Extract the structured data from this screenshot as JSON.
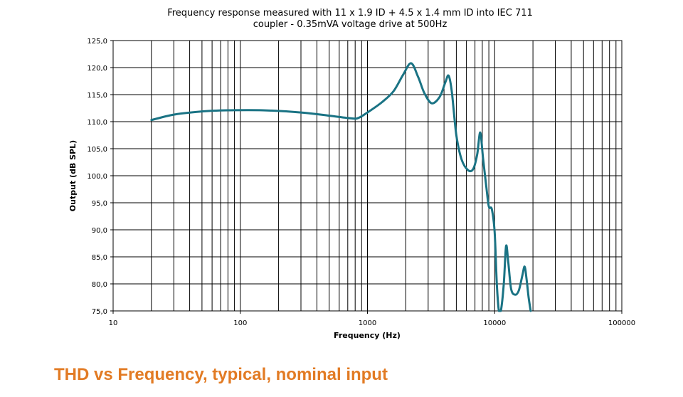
{
  "chart_data": {
    "type": "line",
    "title_lines": [
      "Frequency response measured with 11 x 1.9 ID + 4.5 x 1.4 mm ID into IEC 711",
      "coupler - 0.35mVA voltage drive at 500Hz"
    ],
    "xlabel": "Frequency (Hz)",
    "ylabel": "Output (dB SPL)",
    "x_scale": "log",
    "xlim": [
      10,
      100000
    ],
    "ylim": [
      75,
      125
    ],
    "x_ticks": [
      {
        "value": 10,
        "label": "10"
      },
      {
        "value": 100,
        "label": "100"
      },
      {
        "value": 1000,
        "label": "1000"
      },
      {
        "value": 10000,
        "label": "10000"
      },
      {
        "value": 100000,
        "label": "100000"
      }
    ],
    "y_ticks": [
      {
        "value": 75,
        "label": "75,0"
      },
      {
        "value": 80,
        "label": "80,0"
      },
      {
        "value": 85,
        "label": "85,0"
      },
      {
        "value": 90,
        "label": "90,0"
      },
      {
        "value": 95,
        "label": "95,0"
      },
      {
        "value": 100,
        "label": "100,0"
      },
      {
        "value": 105,
        "label": "105,0"
      },
      {
        "value": 110,
        "label": "110,0"
      },
      {
        "value": 115,
        "label": "115,0"
      },
      {
        "value": 120,
        "label": "120,0"
      },
      {
        "value": 125,
        "label": "125,0"
      }
    ],
    "grid": "minor-log-vertical-and-major-horizontal",
    "line_color": "#1a7384",
    "series": [
      {
        "points": [
          [
            20,
            110.3
          ],
          [
            30,
            111.3
          ],
          [
            50,
            111.9
          ],
          [
            80,
            112.1
          ],
          [
            150,
            112.1
          ],
          [
            300,
            111.7
          ],
          [
            500,
            111.1
          ],
          [
            750,
            110.6
          ],
          [
            850,
            110.7
          ],
          [
            1000,
            111.7
          ],
          [
            1300,
            113.6
          ],
          [
            1600,
            115.6
          ],
          [
            1900,
            118.6
          ],
          [
            2200,
            120.8
          ],
          [
            2500,
            118.3
          ],
          [
            2800,
            115.3
          ],
          [
            3200,
            113.4
          ],
          [
            3700,
            114.6
          ],
          [
            4100,
            117.3
          ],
          [
            4350,
            118.5
          ],
          [
            4600,
            115.6
          ],
          [
            5000,
            107.5
          ],
          [
            5500,
            103.0
          ],
          [
            6200,
            101.0
          ],
          [
            6800,
            101.3
          ],
          [
            7300,
            104.0
          ],
          [
            7700,
            108.0
          ],
          [
            8100,
            103.3
          ],
          [
            8600,
            98.0
          ],
          [
            9000,
            94.3
          ],
          [
            9500,
            93.8
          ],
          [
            10000,
            89.5
          ],
          [
            10400,
            80.0
          ],
          [
            10800,
            75.0
          ],
          [
            11200,
            75.0
          ],
          [
            11800,
            80.0
          ],
          [
            12300,
            87.0
          ],
          [
            12800,
            84.0
          ],
          [
            13500,
            79.0
          ],
          [
            14500,
            78.0
          ],
          [
            15500,
            78.8
          ],
          [
            16500,
            81.5
          ],
          [
            17200,
            83.2
          ],
          [
            17800,
            81.0
          ],
          [
            18500,
            77.5
          ],
          [
            19200,
            75.0
          ]
        ]
      }
    ]
  },
  "caption": "THD vs Frequency, typical, nominal input"
}
